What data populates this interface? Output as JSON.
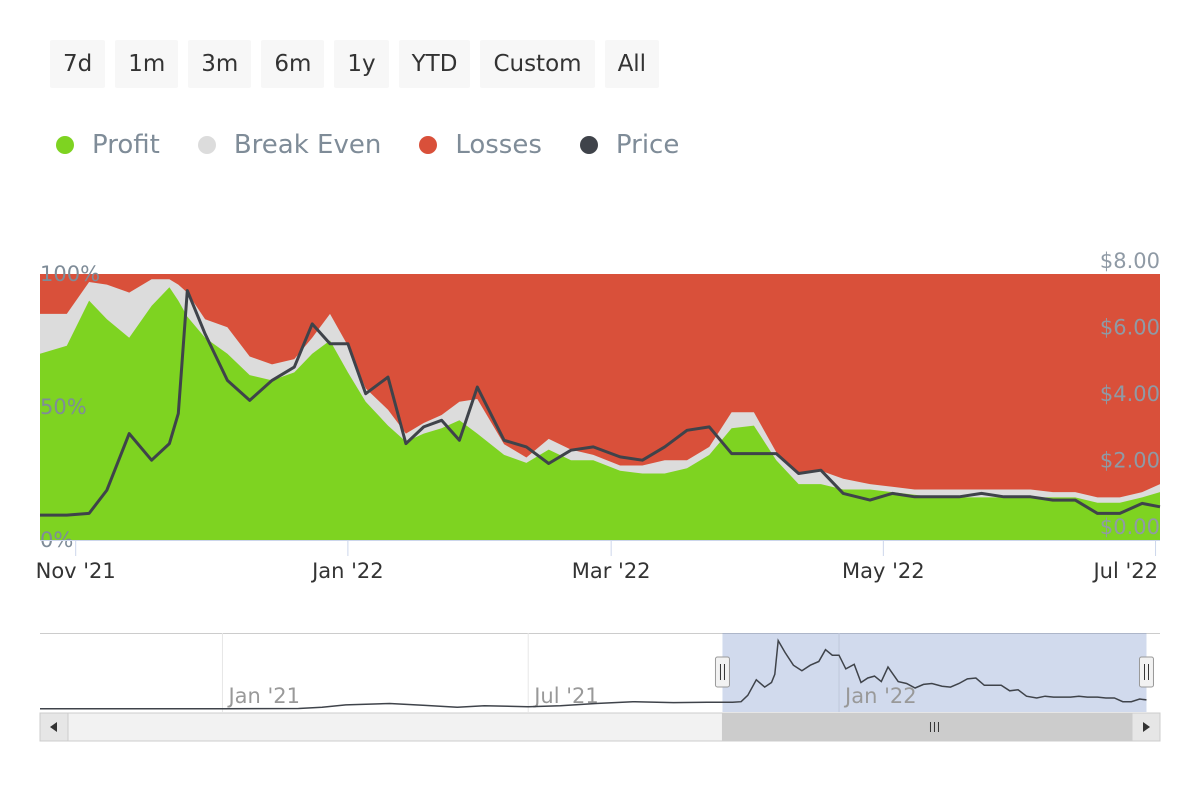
{
  "range_buttons": [
    "7d",
    "1m",
    "3m",
    "6m",
    "1y",
    "YTD",
    "Custom",
    "All"
  ],
  "legend": [
    {
      "label": "Profit",
      "color": "#7ed321",
      "icon": "circle-marker-icon"
    },
    {
      "label": "Break Even",
      "color": "#dcdcdc",
      "icon": "circle-marker-icon"
    },
    {
      "label": "Losses",
      "color": "#d9503a",
      "icon": "circle-marker-icon"
    },
    {
      "label": "Price",
      "color": "#3f434a",
      "icon": "circle-marker-icon"
    }
  ],
  "chart_data": {
    "type": "area",
    "x": [
      "2021-10-24",
      "2021-10-30",
      "2021-11-04",
      "2021-11-08",
      "2021-11-13",
      "2021-11-18",
      "2021-11-22",
      "2021-11-24",
      "2021-11-26",
      "2021-11-30",
      "2021-12-05",
      "2021-12-10",
      "2021-12-15",
      "2021-12-20",
      "2021-12-24",
      "2021-12-28",
      "2022-01-01",
      "2022-01-05",
      "2022-01-10",
      "2022-01-14",
      "2022-01-18",
      "2022-01-22",
      "2022-01-26",
      "2022-01-30",
      "2022-02-05",
      "2022-02-10",
      "2022-02-15",
      "2022-02-20",
      "2022-02-25",
      "2022-03-03",
      "2022-03-08",
      "2022-03-13",
      "2022-03-18",
      "2022-03-23",
      "2022-03-28",
      "2022-04-02",
      "2022-04-07",
      "2022-04-12",
      "2022-04-17",
      "2022-04-22",
      "2022-04-28",
      "2022-05-03",
      "2022-05-08",
      "2022-05-13",
      "2022-05-18",
      "2022-05-23",
      "2022-05-28",
      "2022-06-03",
      "2022-06-08",
      "2022-06-13",
      "2022-06-18",
      "2022-06-23",
      "2022-06-28",
      "2022-07-02"
    ],
    "series": [
      {
        "name": "Profit",
        "type": "area",
        "unit": "%",
        "values": [
          70,
          73,
          90,
          83,
          76,
          88,
          95,
          90,
          84,
          76,
          70,
          62,
          60,
          63,
          70,
          75,
          63,
          52,
          43,
          37,
          40,
          42,
          45,
          40,
          32,
          29,
          34,
          30,
          30,
          26,
          25,
          25,
          27,
          32,
          42,
          43,
          30,
          21,
          21,
          19,
          19,
          18,
          17,
          16,
          16,
          16,
          16,
          16,
          16,
          16,
          14,
          14,
          16,
          18
        ]
      },
      {
        "name": "Break Even",
        "type": "area",
        "unit": "%",
        "values": [
          85,
          85,
          97,
          96,
          93,
          98,
          98,
          96,
          93,
          83,
          80,
          69,
          66,
          68,
          76,
          85,
          73,
          57,
          49,
          40,
          44,
          47,
          52,
          53,
          36,
          31,
          38,
          34,
          32,
          28,
          28,
          30,
          30,
          35,
          48,
          48,
          33,
          25,
          26,
          23,
          21,
          20,
          19,
          19,
          19,
          19,
          19,
          19,
          18,
          18,
          16,
          16,
          18,
          21
        ]
      },
      {
        "name": "Losses",
        "type": "area",
        "unit": "%",
        "values": [
          15,
          15,
          3,
          4,
          7,
          2,
          2,
          4,
          7,
          17,
          20,
          31,
          34,
          32,
          24,
          15,
          27,
          43,
          51,
          60,
          56,
          53,
          48,
          47,
          64,
          69,
          62,
          66,
          68,
          72,
          72,
          70,
          70,
          65,
          52,
          52,
          67,
          75,
          74,
          77,
          79,
          80,
          81,
          81,
          81,
          81,
          81,
          81,
          82,
          82,
          84,
          84,
          82,
          79
        ]
      },
      {
        "name": "Price",
        "type": "line",
        "unit": "$",
        "values": [
          0.75,
          0.75,
          0.8,
          1.5,
          3.2,
          2.4,
          2.9,
          3.8,
          7.5,
          6.2,
          4.8,
          4.2,
          4.8,
          5.2,
          6.5,
          5.9,
          5.9,
          4.4,
          4.9,
          2.9,
          3.4,
          3.6,
          3.0,
          4.6,
          3.0,
          2.8,
          2.3,
          2.7,
          2.8,
          2.5,
          2.4,
          2.8,
          3.3,
          3.4,
          2.6,
          2.6,
          2.6,
          2.0,
          2.1,
          1.4,
          1.2,
          1.4,
          1.3,
          1.3,
          1.3,
          1.4,
          1.3,
          1.3,
          1.2,
          1.2,
          0.8,
          0.8,
          1.1,
          1.0
        ]
      }
    ],
    "y_left": {
      "ticks": [
        "0%",
        "50%",
        "100%"
      ],
      "range": [
        0,
        100
      ]
    },
    "y_right": {
      "ticks": [
        "$0.00",
        "$2.00",
        "$4.00",
        "$6.00",
        "$8.00"
      ],
      "range": [
        0,
        8
      ]
    },
    "x_ticks": [
      {
        "date": "2021-11-01",
        "label": "Nov '21"
      },
      {
        "date": "2022-01-01",
        "label": "Jan '22"
      },
      {
        "date": "2022-03-01",
        "label": "Mar '22"
      },
      {
        "date": "2022-05-01",
        "label": "May '22"
      },
      {
        "date": "2022-07-01",
        "label": "Jul '22"
      }
    ],
    "x_range": [
      "2021-10-24",
      "2022-07-02"
    ],
    "stacked": true,
    "navigator": {
      "range": [
        "2020-09-15",
        "2022-07-10"
      ],
      "selected": [
        "2021-10-24",
        "2022-07-02"
      ],
      "ticks": [
        {
          "date": "2021-01-01",
          "label": "Jan '21"
        },
        {
          "date": "2021-07-01",
          "label": "Jul '21"
        },
        {
          "date": "2022-01-01",
          "label": "Jan '22"
        }
      ],
      "price_before": [
        {
          "date": "2020-09-15",
          "price": 0.02
        },
        {
          "date": "2020-11-01",
          "price": 0.02
        },
        {
          "date": "2021-01-01",
          "price": 0.03
        },
        {
          "date": "2021-02-15",
          "price": 0.05
        },
        {
          "date": "2021-03-01",
          "price": 0.2
        },
        {
          "date": "2021-03-15",
          "price": 0.45
        },
        {
          "date": "2021-04-10",
          "price": 0.6
        },
        {
          "date": "2021-05-01",
          "price": 0.4
        },
        {
          "date": "2021-05-20",
          "price": 0.2
        },
        {
          "date": "2021-06-05",
          "price": 0.35
        },
        {
          "date": "2021-07-01",
          "price": 0.25
        },
        {
          "date": "2021-07-20",
          "price": 0.35
        },
        {
          "date": "2021-08-10",
          "price": 0.6
        },
        {
          "date": "2021-09-01",
          "price": 0.8
        },
        {
          "date": "2021-09-25",
          "price": 0.7
        },
        {
          "date": "2021-10-15",
          "price": 0.75
        }
      ]
    }
  }
}
